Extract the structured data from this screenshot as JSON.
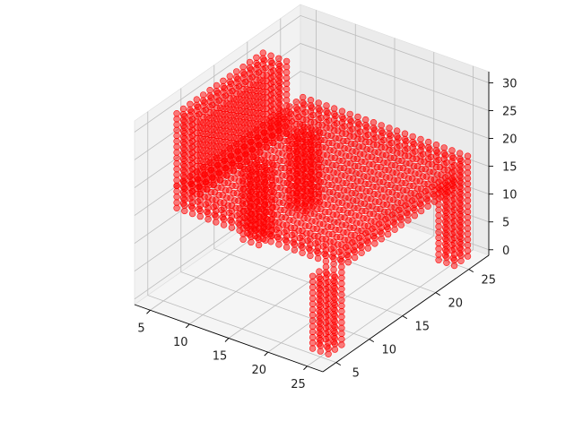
{
  "chart_data": {
    "type": "scatter",
    "projection": "3d",
    "title": "",
    "xlabel": "",
    "ylabel": "",
    "zlabel": "",
    "xlim": [
      3,
      27
    ],
    "ylim": [
      3,
      28
    ],
    "zlim": [
      -1,
      32
    ],
    "x_ticks": [
      5,
      10,
      15,
      20,
      25
    ],
    "y_ticks": [
      5,
      10,
      15,
      20,
      25
    ],
    "z_ticks": [
      0,
      5,
      10,
      15,
      20,
      25,
      30
    ],
    "x_tick_labels": [
      "5",
      "10",
      "15",
      "20",
      "25"
    ],
    "y_tick_labels": [
      "5",
      "10",
      "15",
      "20",
      "25"
    ],
    "z_tick_labels": [
      "0",
      "5",
      "10",
      "15",
      "20",
      "25",
      "30"
    ],
    "grid": true,
    "legend": "none",
    "marker": "o",
    "marker_color": "#ff0000",
    "marker_alpha": 0.5,
    "series": [
      {
        "shape": "voxel table",
        "legs": [
          {
            "x": [
              5,
              7
            ],
            "y": [
              17,
              19
            ],
            "z": [
              0,
              13
            ]
          },
          {
            "x": [
              5,
              7
            ],
            "y": [
              24,
              26
            ],
            "z": [
              0,
              13
            ]
          },
          {
            "x": [
              24,
              26
            ],
            "y": [
              5,
              7
            ],
            "z": [
              0,
              13
            ]
          },
          {
            "x": [
              24,
              26
            ],
            "y": [
              24,
              26
            ],
            "z": [
              0,
              13
            ]
          }
        ],
        "seat": {
          "x": [
            5,
            26
          ],
          "y": [
            7,
            26
          ],
          "z": [
            14,
            18
          ]
        },
        "backrest": {
          "x": [
            5,
            8
          ],
          "y": [
            7,
            20
          ],
          "z": [
            18,
            31
          ]
        }
      }
    ]
  },
  "colors": {
    "points": "#ff0000",
    "pane_left": "#f2f2f2",
    "pane_right": "#ebebeb",
    "pane_floor": "#f5f5f5",
    "grid": "#bcbcbc",
    "text": "#222222"
  }
}
